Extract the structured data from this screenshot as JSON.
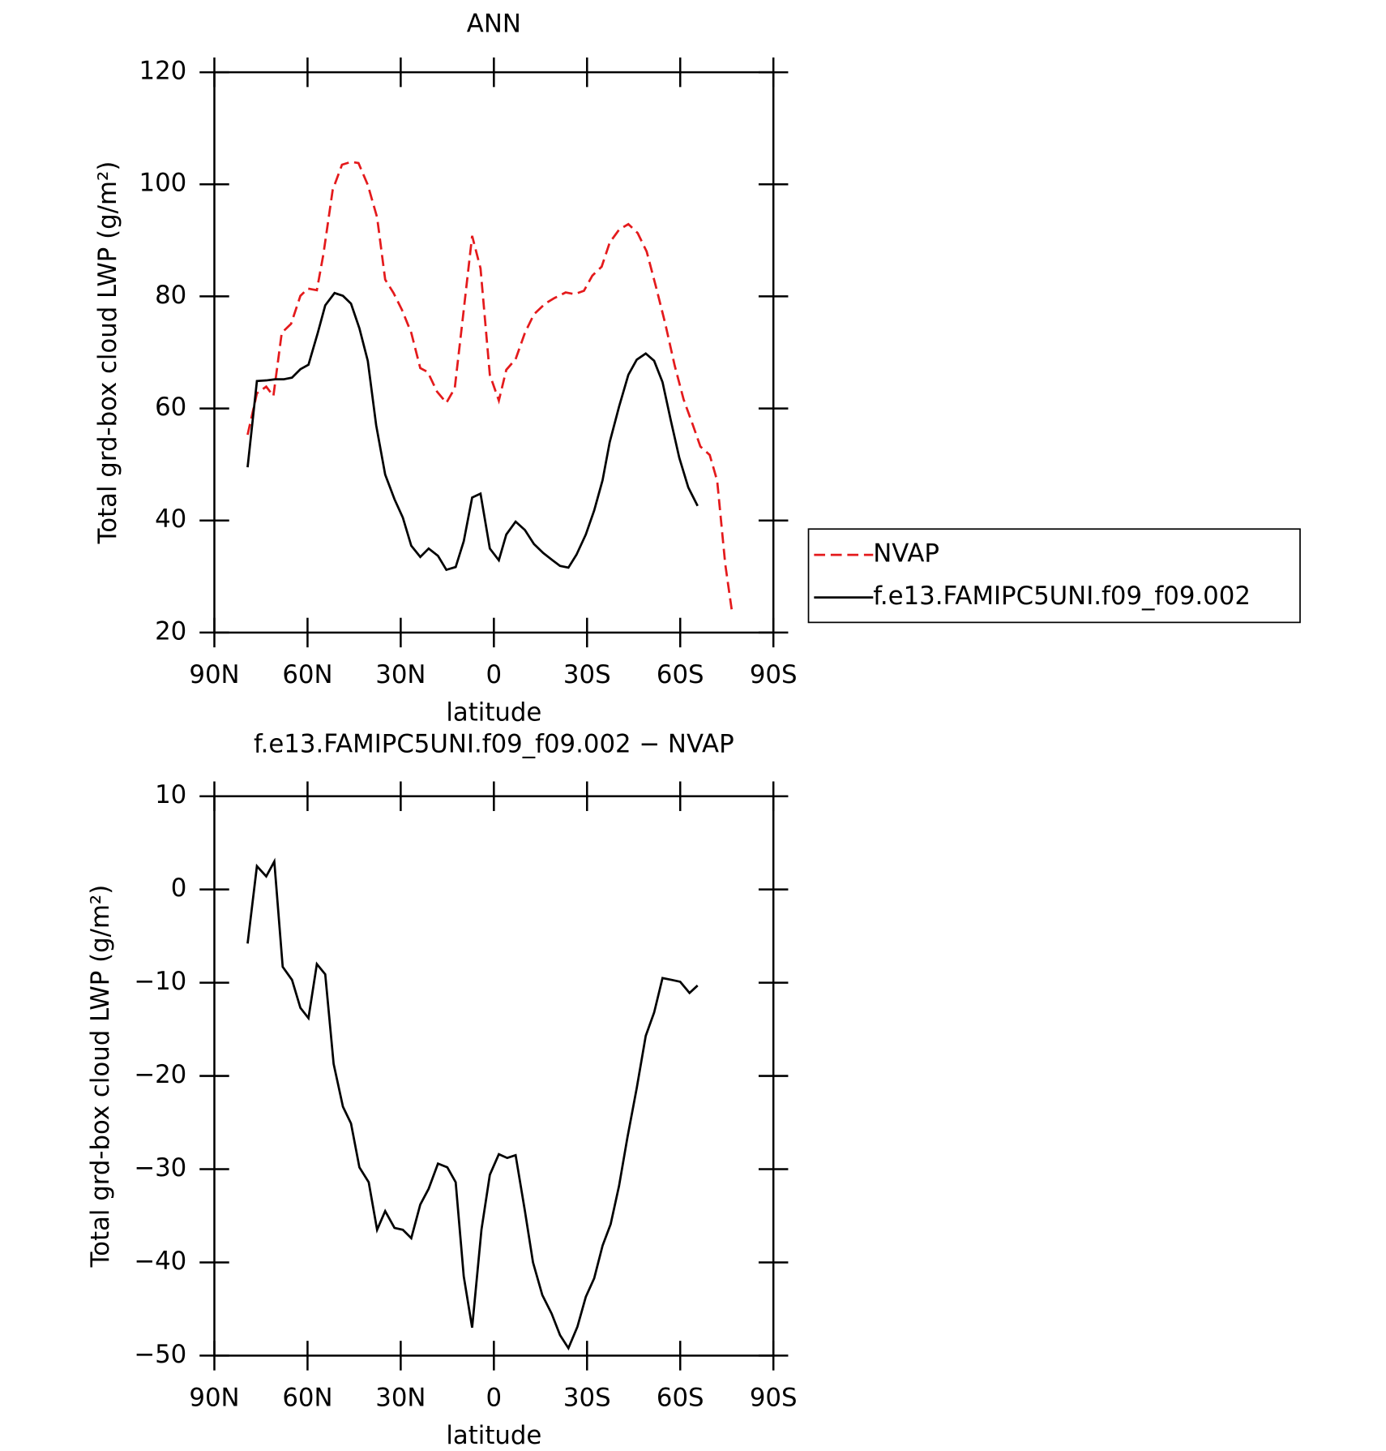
{
  "chart_data": [
    {
      "type": "line",
      "title": "ANN",
      "xlabel": "latitude",
      "ylabel": "Total grd-box cloud LWP (g/m²)",
      "xlim": [
        90,
        -90
      ],
      "ylim": [
        20,
        120
      ],
      "xticks": [
        {
          "value": 90,
          "label": "90N"
        },
        {
          "value": 60,
          "label": "60N"
        },
        {
          "value": 30,
          "label": "30N"
        },
        0,
        {
          "value": -30,
          "label": "30S"
        },
        {
          "value": -60,
          "label": "60S"
        },
        {
          "value": -90,
          "label": "90S"
        }
      ],
      "yticks": [
        20,
        40,
        60,
        80,
        100,
        120
      ],
      "legend": "right",
      "series": [
        {
          "name": "NVAP",
          "color": "#e41a1c",
          "line_style": "dashed",
          "x": [
            79.3,
            76.3,
            73.3,
            71.0,
            68.3,
            65.3,
            62.3,
            59.9,
            57.0,
            54.9,
            51.9,
            48.9,
            46.0,
            43.6,
            40.6,
            37.6,
            35.0,
            32.3,
            29.6,
            26.6,
            23.7,
            21.3,
            18.3,
            15.3,
            12.6,
            9.7,
            7.0,
            4.3,
            1.3,
            -1.6,
            -4.0,
            -7.0,
            -10.0,
            -12.9,
            -16.5,
            -19.5,
            -23.1,
            -26.0,
            -29.0,
            -31.7,
            -34.7,
            -37.3,
            -40.3,
            -43.3,
            -46.3,
            -49.2,
            -52.2,
            -55.2,
            -58.2,
            -61.1,
            -64.1,
            -66.5,
            -69.5,
            -71.9,
            -74.5,
            -76.6
          ],
          "values": [
            55.3,
            62.7,
            63.9,
            62.2,
            73.5,
            75.1,
            80.1,
            81.4,
            81.1,
            87.5,
            99,
            103.5,
            104,
            103.8,
            99.9,
            94.1,
            83,
            80.6,
            77.6,
            73.5,
            67.2,
            66.5,
            63,
            61,
            63.6,
            77.6,
            90.8,
            85,
            66,
            61.4,
            66.9,
            68.8,
            73.5,
            76.8,
            78.7,
            79.7,
            80.7,
            80.4,
            81,
            83.7,
            85.3,
            89.6,
            91.9,
            92.9,
            91.3,
            88,
            81.7,
            75.1,
            67.7,
            61.6,
            57,
            53.2,
            51.7,
            47.1,
            32.2,
            24
          ]
        },
        {
          "name": "f.e13.FAMIPC5UNI.f09_f09.002",
          "color": "#000000",
          "line_style": "solid",
          "x": [
            79.3,
            76.3,
            73.3,
            70.4,
            67.7,
            65.0,
            62.3,
            59.7,
            56.7,
            54.3,
            51.3,
            48.6,
            46.0,
            43.3,
            40.6,
            37.9,
            35.0,
            32.0,
            29.3,
            26.6,
            23.7,
            21.0,
            18.0,
            15.3,
            12.3,
            9.7,
            7.0,
            4.3,
            1.3,
            -1.6,
            -4.0,
            -7.0,
            -10.0,
            -12.9,
            -15.9,
            -18.9,
            -21.3,
            -24.0,
            -26.6,
            -29.6,
            -32.3,
            -35.0,
            -37.3,
            -40.3,
            -43.3,
            -46.0,
            -48.9,
            -51.6,
            -54.3,
            -57.0,
            -59.7,
            -62.6,
            -65.6
          ],
          "values": [
            49.5,
            64.9,
            65,
            65.2,
            65.2,
            65.5,
            67,
            67.8,
            73.5,
            78.4,
            80.6,
            80.1,
            78.7,
            74.3,
            68.5,
            57,
            48.2,
            43.8,
            40.5,
            35.5,
            33.5,
            35,
            33.7,
            31.2,
            31.7,
            36.3,
            44.1,
            44.8,
            35,
            32.9,
            37.5,
            39.8,
            38.3,
            35.8,
            34.2,
            32.9,
            31.9,
            31.6,
            33.9,
            37.5,
            41.8,
            47.2,
            54,
            60.3,
            66,
            68.7,
            69.8,
            68.5,
            64.7,
            57.8,
            51.2,
            45.9,
            42.6
          ]
        }
      ]
    },
    {
      "type": "line",
      "title": "f.e13.FAMIPC5UNI.f09_f09.002 − NVAP",
      "xlabel": "latitude",
      "ylabel": "Total grd-box cloud LWP (g/m²)",
      "xlim": [
        90,
        -90
      ],
      "ylim": [
        -50,
        10
      ],
      "xticks": [
        {
          "value": 90,
          "label": "90N"
        },
        {
          "value": 60,
          "label": "60N"
        },
        {
          "value": 30,
          "label": "30N"
        },
        0,
        {
          "value": -30,
          "label": "30S"
        },
        {
          "value": -60,
          "label": "60S"
        },
        {
          "value": -90,
          "label": "90S"
        }
      ],
      "yticks": [
        {
          "value": -50,
          "label": "−50"
        },
        {
          "value": -40,
          "label": "−40"
        },
        {
          "value": -30,
          "label": "−30"
        },
        {
          "value": -20,
          "label": "−20"
        },
        {
          "value": -10,
          "label": "−10"
        },
        0,
        10
      ],
      "series": [
        {
          "color": "#000000",
          "line_style": "solid",
          "x": [
            79.3,
            76.3,
            73.3,
            70.7,
            68.0,
            65.0,
            62.3,
            59.7,
            57.0,
            54.3,
            51.6,
            48.6,
            46.0,
            43.3,
            40.3,
            37.6,
            35.0,
            32.0,
            29.3,
            26.6,
            23.7,
            21.0,
            18.0,
            15.0,
            12.3,
            9.7,
            7.0,
            4.0,
            1.3,
            -1.6,
            -4.3,
            -7.0,
            -10.0,
            -12.6,
            -15.6,
            -18.6,
            -21.3,
            -24.0,
            -26.9,
            -29.6,
            -32.3,
            -35.0,
            -37.6,
            -40.3,
            -43.0,
            -46.0,
            -48.9,
            -51.6,
            -54.3,
            -57.3,
            -60.0,
            -63.0,
            -65.6
          ],
          "values": [
            -5.8,
            2.5,
            1.4,
            3,
            -8.3,
            -9.7,
            -12.7,
            -13.8,
            -8.0,
            -9.1,
            -18.7,
            -23.3,
            -25.1,
            -29.8,
            -31.4,
            -36.5,
            -34.5,
            -36.3,
            -36.5,
            -37.4,
            -33.8,
            -32.1,
            -29.4,
            -29.8,
            -31.4,
            -41.5,
            -47.0,
            -36.5,
            -30.6,
            -28.4,
            -28.8,
            -28.5,
            -34.5,
            -40.0,
            -43.5,
            -45.5,
            -47.8,
            -49.2,
            -46.9,
            -43.7,
            -41.7,
            -38.2,
            -35.9,
            -31.8,
            -26.6,
            -21.3,
            -15.7,
            -13.2,
            -9.5,
            -9.7,
            -9.9,
            -11.1,
            -10.3
          ]
        }
      ]
    }
  ]
}
